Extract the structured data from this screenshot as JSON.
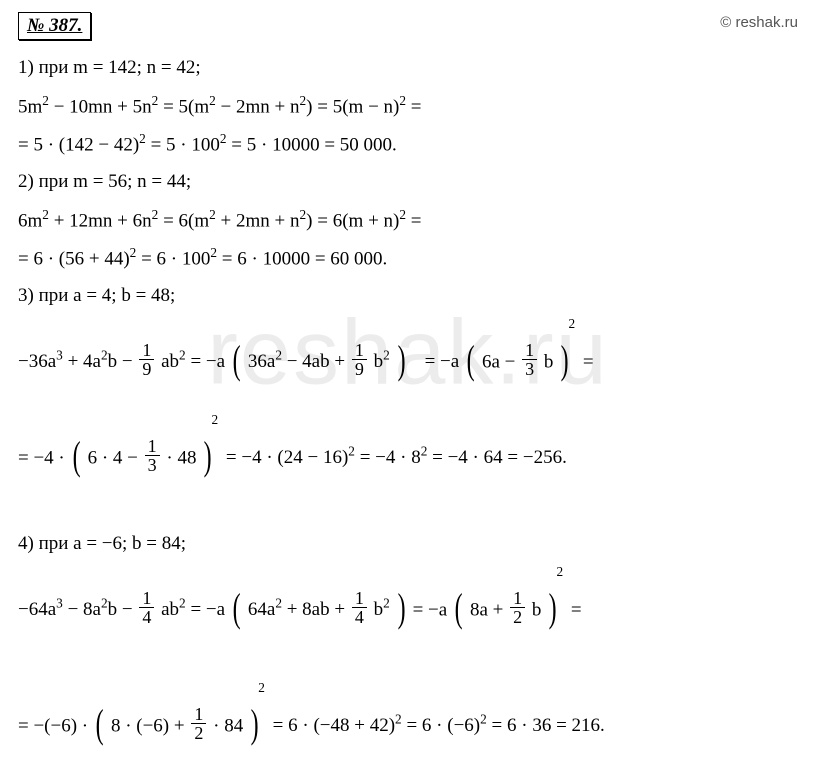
{
  "problem_number": "№ 387.",
  "source_url": "© reshak.ru",
  "watermark": "reshak.ru",
  "p1": {
    "header": "1) при m = 142;   n = 42;",
    "line1": "5m² − 10mn + 5n² = 5(m² − 2mn + n²) = 5(m − n)² =",
    "line2": "= 5 · (142 − 42)² = 5 · 100² = 5 · 10000 = 50 000."
  },
  "p2": {
    "header": "2) при m = 56;   n = 44;",
    "line1": "6m² + 12mn + 6n² = 6(m² + 2mn + n²) = 6(m + n)² =",
    "line2": "= 6 · (56 + 44)² = 6 · 100² = 6 · 10000 = 60 000."
  },
  "p3": {
    "header": "3) при a = 4;   b = 48;",
    "seg1": "−36a³ + 4a²b − ",
    "frac1_num": "1",
    "frac1_den": "9",
    "seg2": " ab² = −a ",
    "seg3": "36a² − 4ab + ",
    "frac2_num": "1",
    "frac2_den": "9",
    "seg4": " b²",
    "seg5": "  = −a ",
    "seg6": "6a − ",
    "frac3_num": "1",
    "frac3_den": "3",
    "seg7": " b",
    "seg8": " =",
    "l2seg1": "= −4 · ",
    "l2seg2": "6 · 4 − ",
    "frac4_num": "1",
    "frac4_den": "3",
    "l2seg3": " · 48",
    "l2seg4": " = −4 · (24 − 16)² = −4 · 8² = −4 · 64 = −256."
  },
  "p4": {
    "header": "4) при a = −6;   b = 84;",
    "seg1": "−64a³ − 8a²b − ",
    "frac1_num": "1",
    "frac1_den": "4",
    "seg2": " ab² = −a ",
    "seg3": "64a² + 8ab + ",
    "frac2_num": "1",
    "frac2_den": "4",
    "seg4": " b²",
    "seg5": " = −a ",
    "seg6": "8a + ",
    "frac3_num": "1",
    "frac3_den": "2",
    "seg7": " b",
    "seg8": " =",
    "l2seg1": "= −(−6) · ",
    "l2seg2": "8 · (−6) + ",
    "frac4_num": "1",
    "frac4_den": "2",
    "l2seg3": " · 84",
    "l2seg4": " = 6 · (−48 + 42)² = 6 · (−6)² = 6 · 36 = 216."
  }
}
